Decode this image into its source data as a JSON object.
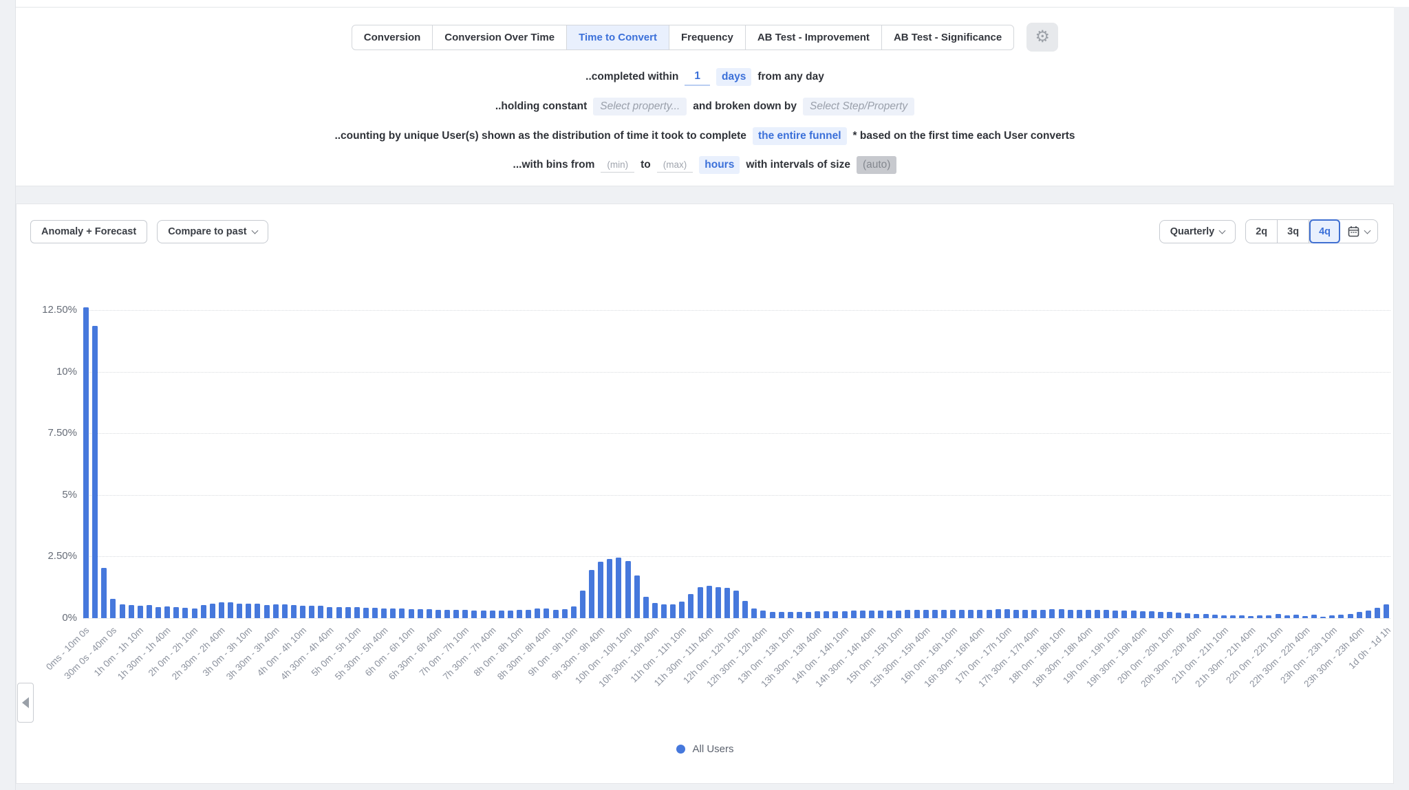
{
  "tabs": {
    "items": [
      {
        "label": "Conversion",
        "selected": false
      },
      {
        "label": "Conversion Over Time",
        "selected": false
      },
      {
        "label": "Time to Convert",
        "selected": true
      },
      {
        "label": "Frequency",
        "selected": false
      },
      {
        "label": "AB Test - Improvement",
        "selected": false
      },
      {
        "label": "AB Test - Significance",
        "selected": false
      }
    ],
    "gear_glyph": "⚙"
  },
  "config": {
    "row1": {
      "prefix": "..completed within",
      "value": "1",
      "unit": "days",
      "suffix": "from any day"
    },
    "row2": {
      "prefix": "..holding constant",
      "select_property": "Select property...",
      "middle": "and broken down by",
      "select_step": "Select Step/Property"
    },
    "row3": {
      "prefix": "..counting by unique User(s) shown as the distribution of time it took to complete",
      "chip": "the entire funnel",
      "suffix": "* based on the first time each User converts"
    },
    "row4": {
      "prefix": "...with bins from",
      "min_placeholder": "(min)",
      "to": "to",
      "max_placeholder": "(max)",
      "unit": "hours",
      "middle": "with intervals of size",
      "auto": "(auto)"
    }
  },
  "chart_controls": {
    "anomaly_button": "Anomaly + Forecast",
    "compare_button": "Compare to past",
    "interval_dropdown": "Quarterly",
    "range_options": [
      "2q",
      "3q",
      "4q"
    ],
    "selected_range": "4q"
  },
  "legend": {
    "series": "All Users",
    "color": "#4678dc"
  },
  "colors": {
    "accent_blue": "#3b70d9",
    "bar_blue": "#4678dc",
    "chip_blue_bg": "#e9f0fd"
  },
  "chart_data": {
    "type": "bar",
    "title": "Time to Convert distribution",
    "series_name": "All Users",
    "bar_color": "#4678dc",
    "ylim": [
      0,
      13
    ],
    "grid": "dotted-horizontal",
    "legend_position": "bottom-center",
    "y_ticks": [
      {
        "label": "12.50%",
        "value": 12.5
      },
      {
        "label": "10%",
        "value": 10
      },
      {
        "label": "7.50%",
        "value": 7.5
      },
      {
        "label": "5%",
        "value": 5
      },
      {
        "label": "2.50%",
        "value": 2.5
      },
      {
        "label": "0%",
        "value": 0
      }
    ],
    "label_interval": 3,
    "x_tick_labels": [
      "0ms - 10m 0s",
      "30m 0s - 40m 0s",
      "1h 0m - 1h 10m",
      "1h 30m - 1h 40m",
      "2h 0m - 2h 10m",
      "2h 30m - 2h 40m",
      "3h 0m - 3h 10m",
      "3h 30m - 3h 40m",
      "4h 0m - 4h 10m",
      "4h 30m - 4h 40m",
      "5h 0m - 5h 10m",
      "5h 30m - 5h 40m",
      "6h 0m - 6h 10m",
      "6h 30m - 6h 40m",
      "7h 0m - 7h 10m",
      "7h 30m - 7h 40m",
      "8h 0m - 8h 10m",
      "8h 30m - 8h 40m",
      "9h 0m - 9h 10m",
      "9h 30m - 9h 40m",
      "10h 0m - 10h 10m",
      "10h 30m - 10h 40m",
      "11h 0m - 11h 10m",
      "11h 30m - 11h 40m",
      "12h 0m - 12h 10m",
      "12h 30m - 12h 40m",
      "13h 0m - 13h 10m",
      "13h 30m - 13h 40m",
      "14h 0m - 14h 10m",
      "14h 30m - 14h 40m",
      "15h 0m - 15h 10m",
      "15h 30m - 15h 40m",
      "16h 0m - 16h 10m",
      "16h 30m - 16h 40m",
      "17h 0m - 17h 10m",
      "17h 30m - 17h 40m",
      "18h 0m - 18h 10m",
      "18h 30m - 18h 40m",
      "19h 0m - 19h 10m",
      "19h 30m - 19h 40m",
      "20h 0m - 20h 10m",
      "20h 30m - 20h 40m",
      "21h 0m - 21h 10m",
      "21h 30m - 21h 40m",
      "22h 0m - 22h 10m",
      "22h 30m - 22h 40m",
      "23h 0m - 23h 10m",
      "23h 30m - 23h 40m",
      "1d 0h - 1d 1h"
    ],
    "values": [
      12.62,
      11.86,
      2.05,
      0.78,
      0.55,
      0.52,
      0.5,
      0.52,
      0.45,
      0.47,
      0.46,
      0.42,
      0.38,
      0.52,
      0.6,
      0.65,
      0.63,
      0.6,
      0.6,
      0.58,
      0.54,
      0.56,
      0.56,
      0.52,
      0.5,
      0.5,
      0.49,
      0.46,
      0.45,
      0.44,
      0.44,
      0.42,
      0.41,
      0.4,
      0.39,
      0.38,
      0.37,
      0.36,
      0.36,
      0.35,
      0.34,
      0.34,
      0.33,
      0.32,
      0.32,
      0.31,
      0.3,
      0.3,
      0.33,
      0.35,
      0.38,
      0.38,
      0.34,
      0.36,
      0.47,
      1.13,
      1.95,
      2.3,
      2.4,
      2.46,
      2.33,
      1.72,
      0.87,
      0.62,
      0.57,
      0.57,
      0.66,
      0.99,
      1.27,
      1.32,
      1.27,
      1.23,
      1.11,
      0.69,
      0.38,
      0.31,
      0.24,
      0.24,
      0.24,
      0.26,
      0.26,
      0.27,
      0.28,
      0.28,
      0.29,
      0.3,
      0.3,
      0.31,
      0.31,
      0.32,
      0.32,
      0.33,
      0.33,
      0.33,
      0.34,
      0.34,
      0.34,
      0.35,
      0.35,
      0.35,
      0.35,
      0.36,
      0.36,
      0.35,
      0.35,
      0.35,
      0.34,
      0.36,
      0.36,
      0.35,
      0.35,
      0.34,
      0.33,
      0.33,
      0.32,
      0.31,
      0.3,
      0.29,
      0.27,
      0.26,
      0.24,
      0.22,
      0.2,
      0.18,
      0.16,
      0.14,
      0.12,
      0.1,
      0.1,
      0.09,
      0.1,
      0.12,
      0.16,
      0.12,
      0.14,
      0.09,
      0.14,
      0.06,
      0.12,
      0.14,
      0.18,
      0.25,
      0.3,
      0.43,
      0.57
    ]
  }
}
